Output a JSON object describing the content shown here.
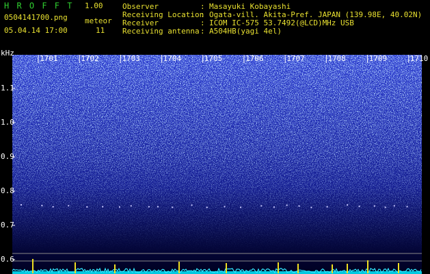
{
  "header": {
    "title": "H R O F F T",
    "version": "1.00",
    "filename": "0504141700.png",
    "meteor_label": "meteor",
    "datetime": "05.04.14 17:00",
    "meteor_count": "11"
  },
  "separator": ":",
  "info": [
    {
      "label": "Observer",
      "value": "Masayuki Kobayashi"
    },
    {
      "label": "Receiving Location",
      "value": "Ogata-vill. Akita-Pref. JAPAN (139.98E, 40.02N)"
    },
    {
      "label": "Receiver",
      "value": "ICOM IC-575 53.7492(@LCD)MHz USB"
    },
    {
      "label": "Receiving antenna",
      "value": "A504HB(yagi 4el)"
    }
  ],
  "spectrogram": {
    "unit": "kHz",
    "freq_labels": [
      "1.1",
      "1.0",
      "0.9",
      "0.8",
      "0.7",
      "0.6"
    ],
    "time_labels": [
      "1701",
      "1702",
      "1703",
      "1704",
      "1705",
      "1706",
      "1707",
      "1708",
      "1709",
      "1710"
    ]
  }
}
